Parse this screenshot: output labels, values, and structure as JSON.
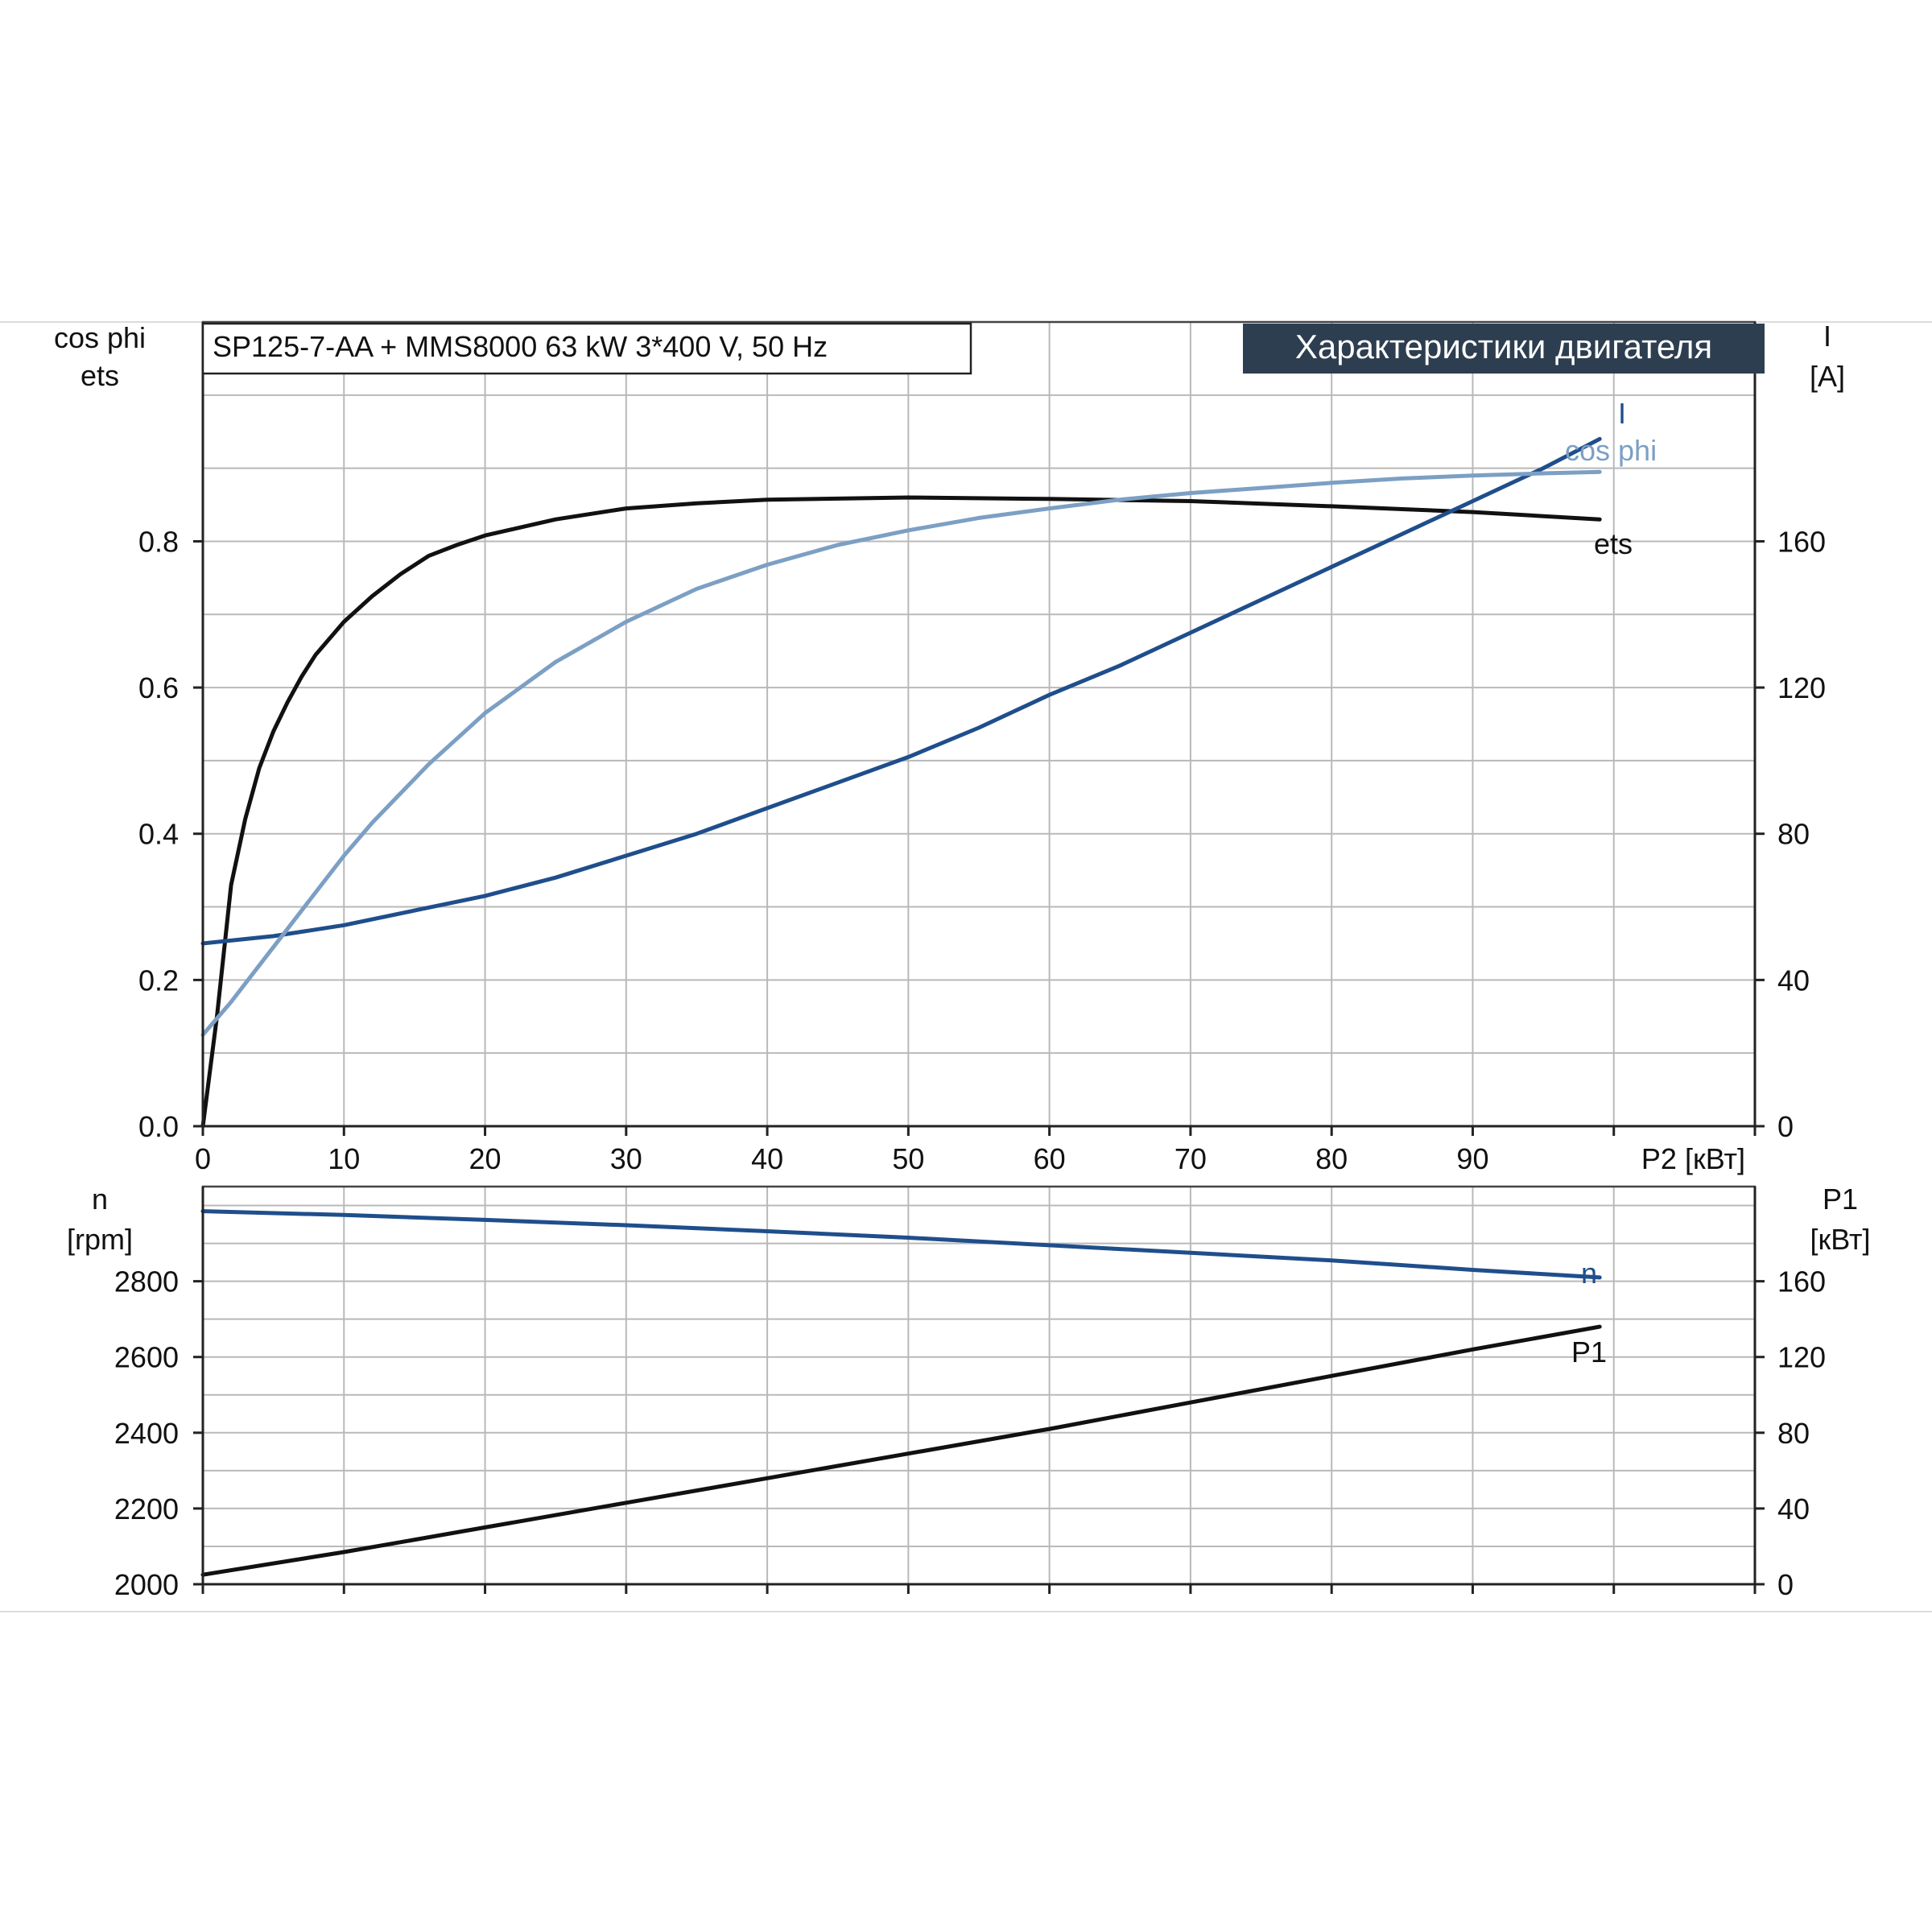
{
  "page": {
    "subtitle_box": "SP125-7-AA + MMS8000   63 kW   3*400 V, 50 Hz",
    "title_badge": "Характеристики двигателя"
  },
  "colors": {
    "ets": "#111111",
    "I": "#1f4e8c",
    "cos_phi": "#7c9fc4",
    "n": "#1f4e8c",
    "P1": "#111111",
    "badge_bg": "#2d3e50",
    "badge_fg": "#ffffff",
    "grid": "#b9b9b9"
  },
  "chart_data": [
    {
      "type": "line",
      "name": "upper",
      "xlabel": "P2 [кВт]",
      "xticks": [
        "0",
        "10",
        "20",
        "30",
        "40",
        "50",
        "60",
        "70",
        "80",
        "90"
      ],
      "xlim": [
        0,
        110
      ],
      "left_axis": {
        "label_lines": [
          "cos phi",
          "ets"
        ],
        "ylim": [
          0,
          1.1
        ],
        "ticks": [
          "0.0",
          "0.2",
          "0.4",
          "0.6",
          "0.8"
        ]
      },
      "right_axis": {
        "label_lines": [
          "I",
          "[A]"
        ],
        "ylim": [
          0,
          220
        ],
        "ticks": [
          "0",
          "40",
          "80",
          "120",
          "160"
        ]
      },
      "grid": true,
      "series": [
        {
          "name": "ets",
          "axis": "left",
          "color_key": "ets",
          "points": [
            [
              0,
              0
            ],
            [
              1,
              0.15
            ],
            [
              2,
              0.33
            ],
            [
              3,
              0.42
            ],
            [
              4,
              0.49
            ],
            [
              5,
              0.54
            ],
            [
              6,
              0.58
            ],
            [
              7,
              0.615
            ],
            [
              8,
              0.645
            ],
            [
              10,
              0.69
            ],
            [
              12,
              0.725
            ],
            [
              14,
              0.755
            ],
            [
              16,
              0.78
            ],
            [
              18,
              0.795
            ],
            [
              20,
              0.808
            ],
            [
              25,
              0.83
            ],
            [
              30,
              0.845
            ],
            [
              35,
              0.852
            ],
            [
              40,
              0.857
            ],
            [
              50,
              0.86
            ],
            [
              60,
              0.858
            ],
            [
              70,
              0.855
            ],
            [
              80,
              0.848
            ],
            [
              90,
              0.84
            ],
            [
              99,
              0.83
            ]
          ]
        },
        {
          "name": "I",
          "axis": "right",
          "color_key": "I",
          "points": [
            [
              0,
              50
            ],
            [
              5,
              52
            ],
            [
              10,
              55
            ],
            [
              15,
              59
            ],
            [
              20,
              63
            ],
            [
              25,
              68
            ],
            [
              30,
              74
            ],
            [
              35,
              80
            ],
            [
              40,
              87
            ],
            [
              45,
              94
            ],
            [
              50,
              101
            ],
            [
              55,
              109
            ],
            [
              60,
              118
            ],
            [
              65,
              126
            ],
            [
              70,
              135
            ],
            [
              75,
              144
            ],
            [
              80,
              153
            ],
            [
              85,
              162
            ],
            [
              90,
              171
            ],
            [
              95,
              180
            ],
            [
              99,
              188
            ]
          ]
        },
        {
          "name": "cos phi",
          "axis": "left",
          "color_key": "cos_phi",
          "points": [
            [
              0,
              0.125
            ],
            [
              2,
              0.17
            ],
            [
              4,
              0.22
            ],
            [
              6,
              0.27
            ],
            [
              8,
              0.32
            ],
            [
              10,
              0.37
            ],
            [
              12,
              0.415
            ],
            [
              14,
              0.455
            ],
            [
              16,
              0.495
            ],
            [
              18,
              0.53
            ],
            [
              20,
              0.565
            ],
            [
              25,
              0.635
            ],
            [
              30,
              0.69
            ],
            [
              35,
              0.735
            ],
            [
              40,
              0.768
            ],
            [
              45,
              0.795
            ],
            [
              50,
              0.815
            ],
            [
              55,
              0.832
            ],
            [
              60,
              0.845
            ],
            [
              65,
              0.857
            ],
            [
              70,
              0.866
            ],
            [
              75,
              0.873
            ],
            [
              80,
              0.88
            ],
            [
              85,
              0.886
            ],
            [
              90,
              0.89
            ],
            [
              95,
              0.893
            ],
            [
              99,
              0.895
            ]
          ]
        }
      ],
      "curve_labels": [
        "I",
        "cos phi",
        "ets"
      ]
    },
    {
      "type": "line",
      "name": "lower",
      "xlim": [
        0,
        110
      ],
      "left_axis": {
        "label_lines": [
          "n",
          "[rpm]"
        ],
        "ylim": [
          2000,
          3050
        ],
        "ticks": [
          "2000",
          "2200",
          "2400",
          "2600",
          "2800"
        ]
      },
      "right_axis": {
        "label_lines": [
          "P1",
          "[кВт]"
        ],
        "ylim": [
          0,
          210
        ],
        "ticks": [
          "0",
          "40",
          "80",
          "120",
          "160"
        ]
      },
      "grid": true,
      "series": [
        {
          "name": "n",
          "axis": "left",
          "color_key": "n",
          "points": [
            [
              0,
              2985
            ],
            [
              10,
              2975
            ],
            [
              20,
              2962
            ],
            [
              30,
              2948
            ],
            [
              40,
              2932
            ],
            [
              50,
              2915
            ],
            [
              60,
              2895
            ],
            [
              70,
              2875
            ],
            [
              80,
              2855
            ],
            [
              90,
              2830
            ],
            [
              99,
              2810
            ]
          ]
        },
        {
          "name": "P1",
          "axis": "right",
          "color_key": "P1",
          "points": [
            [
              0,
              5
            ],
            [
              10,
              17
            ],
            [
              20,
              30
            ],
            [
              30,
              43
            ],
            [
              40,
              56
            ],
            [
              50,
              69
            ],
            [
              60,
              82
            ],
            [
              70,
              96
            ],
            [
              80,
              110
            ],
            [
              90,
              124
            ],
            [
              99,
              136
            ]
          ]
        }
      ],
      "curve_labels": [
        "n",
        "P1"
      ]
    }
  ]
}
